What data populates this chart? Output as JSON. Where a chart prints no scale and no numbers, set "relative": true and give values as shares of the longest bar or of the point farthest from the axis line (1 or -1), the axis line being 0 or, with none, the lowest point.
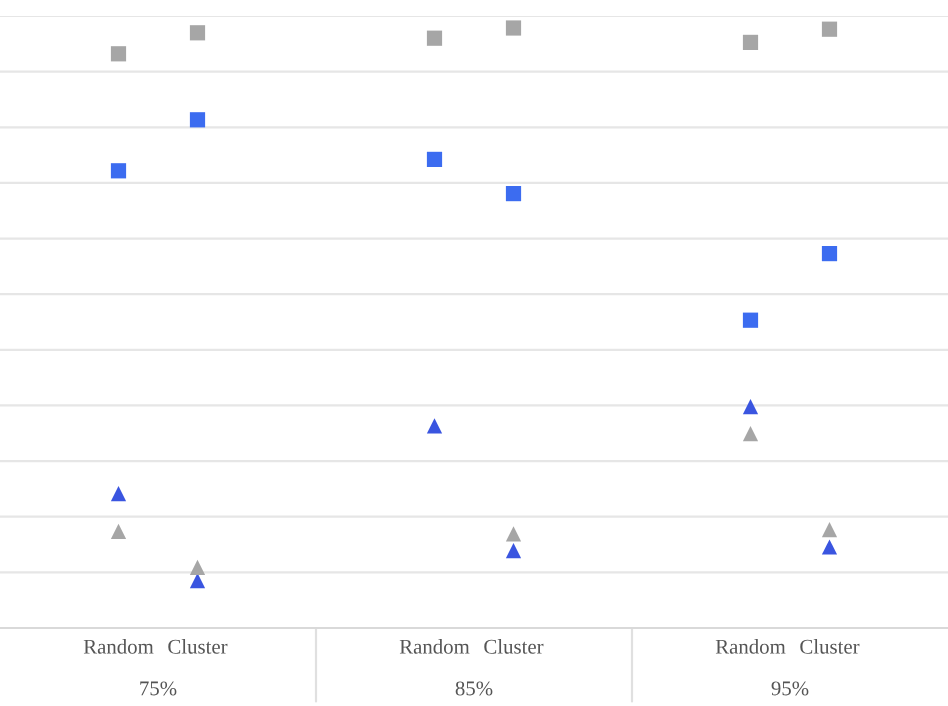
{
  "chart_data": {
    "type": "scatter",
    "relative": true,
    "grid": "y",
    "legend": false,
    "categories": [
      "Random",
      "Cluster",
      null,
      null,
      "Random",
      "Cluster",
      null,
      null,
      "Random",
      "Cluster"
    ],
    "annotations": [
      "75%",
      "85%",
      "95%"
    ],
    "series": [
      {
        "color": "#a6a6a6",
        "marker": "square",
        "values": [
          0.957,
          0.992,
          null,
          null,
          0.983,
          1.0,
          null,
          null,
          0.976,
          0.998
        ]
      },
      {
        "color": "#3c6cf0",
        "marker": "square",
        "values": [
          0.762,
          0.847,
          null,
          null,
          0.781,
          0.724,
          null,
          null,
          0.513,
          0.624
        ]
      },
      {
        "color": "#3a55e0",
        "marker": "triangle",
        "values": [
          0.224,
          0.079,
          null,
          null,
          0.337,
          0.129,
          null,
          null,
          0.369,
          0.135
        ]
      },
      {
        "color": "#a6a6a6",
        "marker": "triangle",
        "values": [
          0.161,
          0.101,
          null,
          null,
          null,
          0.157,
          null,
          null,
          0.324,
          0.164
        ]
      }
    ]
  }
}
